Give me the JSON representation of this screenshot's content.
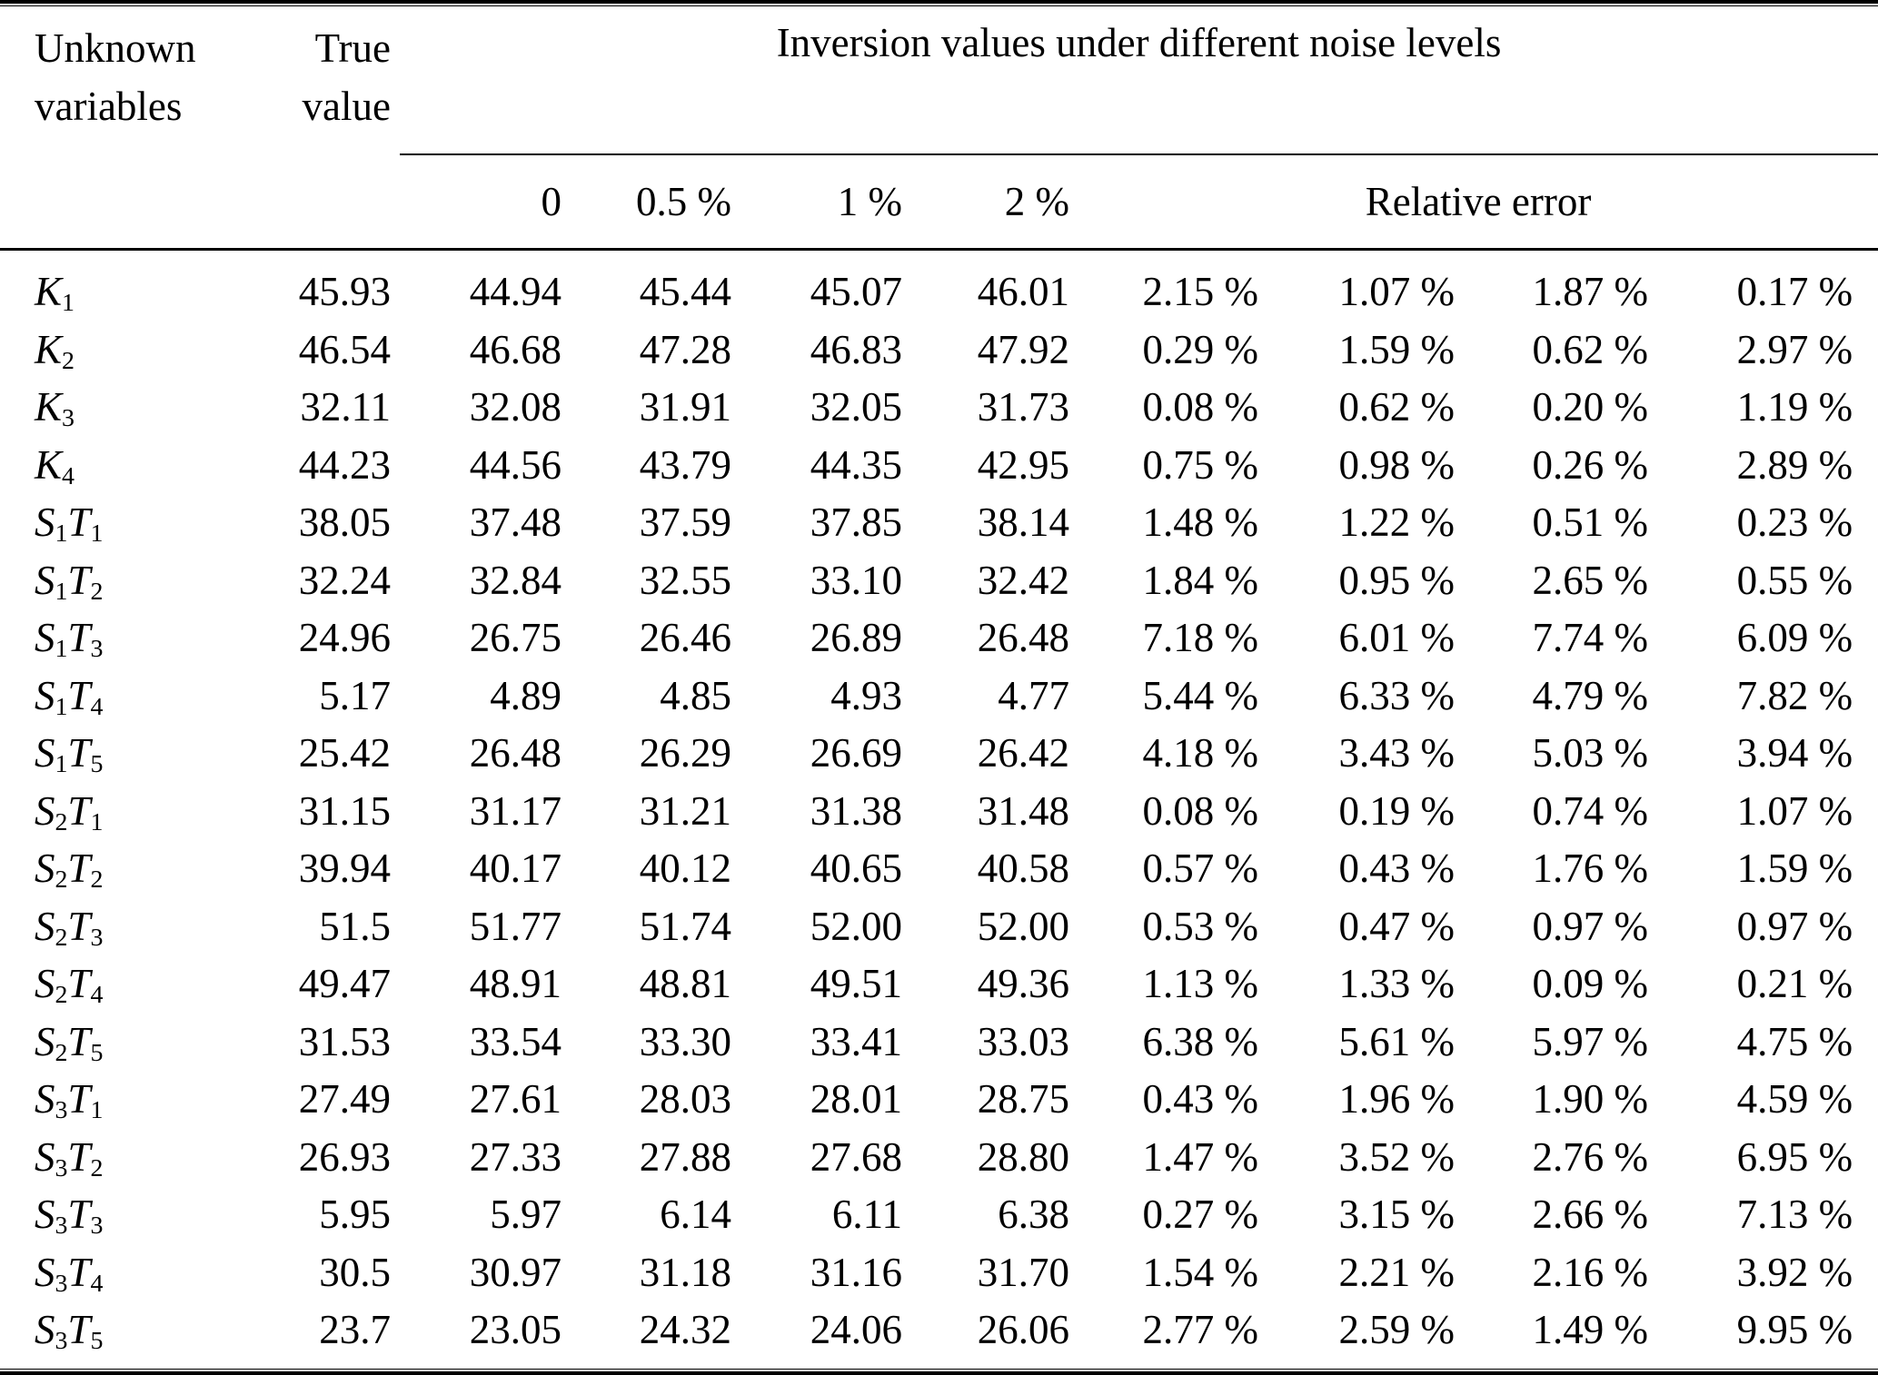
{
  "table": {
    "header": {
      "unknown_variables_lines": [
        "Unknown",
        "variables"
      ],
      "true_value_lines": [
        "True",
        "value"
      ],
      "inversion_span": "Inversion values under different noise levels",
      "noise_levels": [
        "0",
        "0.5 %",
        "1 %",
        "2 %"
      ],
      "relative_error": "Relative error"
    },
    "rows": [
      {
        "variable": "K_1",
        "true_value": "45.93",
        "inversion": [
          "44.94",
          "45.44",
          "45.07",
          "46.01"
        ],
        "relative_error": [
          "2.15 %",
          "1.07 %",
          "1.87 %",
          "0.17 %"
        ]
      },
      {
        "variable": "K_2",
        "true_value": "46.54",
        "inversion": [
          "46.68",
          "47.28",
          "46.83",
          "47.92"
        ],
        "relative_error": [
          "0.29 %",
          "1.59 %",
          "0.62 %",
          "2.97 %"
        ]
      },
      {
        "variable": "K_3",
        "true_value": "32.11",
        "inversion": [
          "32.08",
          "31.91",
          "32.05",
          "31.73"
        ],
        "relative_error": [
          "0.08 %",
          "0.62 %",
          "0.20 %",
          "1.19 %"
        ]
      },
      {
        "variable": "K_4",
        "true_value": "44.23",
        "inversion": [
          "44.56",
          "43.79",
          "44.35",
          "42.95"
        ],
        "relative_error": [
          "0.75 %",
          "0.98 %",
          "0.26 %",
          "2.89 %"
        ]
      },
      {
        "variable": "S_1T_1",
        "true_value": "38.05",
        "inversion": [
          "37.48",
          "37.59",
          "37.85",
          "38.14"
        ],
        "relative_error": [
          "1.48 %",
          "1.22 %",
          "0.51 %",
          "0.23 %"
        ]
      },
      {
        "variable": "S_1T_2",
        "true_value": "32.24",
        "inversion": [
          "32.84",
          "32.55",
          "33.10",
          "32.42"
        ],
        "relative_error": [
          "1.84 %",
          "0.95 %",
          "2.65 %",
          "0.55 %"
        ]
      },
      {
        "variable": "S_1T_3",
        "true_value": "24.96",
        "inversion": [
          "26.75",
          "26.46",
          "26.89",
          "26.48"
        ],
        "relative_error": [
          "7.18 %",
          "6.01 %",
          "7.74 %",
          "6.09 %"
        ]
      },
      {
        "variable": "S_1T_4",
        "true_value": "5.17",
        "inversion": [
          "4.89",
          "4.85",
          "4.93",
          "4.77"
        ],
        "relative_error": [
          "5.44 %",
          "6.33 %",
          "4.79 %",
          "7.82 %"
        ]
      },
      {
        "variable": "S_1T_5",
        "true_value": "25.42",
        "inversion": [
          "26.48",
          "26.29",
          "26.69",
          "26.42"
        ],
        "relative_error": [
          "4.18 %",
          "3.43 %",
          "5.03 %",
          "3.94 %"
        ]
      },
      {
        "variable": "S_2T_1",
        "true_value": "31.15",
        "inversion": [
          "31.17",
          "31.21",
          "31.38",
          "31.48"
        ],
        "relative_error": [
          "0.08 %",
          "0.19 %",
          "0.74 %",
          "1.07 %"
        ]
      },
      {
        "variable": "S_2T_2",
        "true_value": "39.94",
        "inversion": [
          "40.17",
          "40.12",
          "40.65",
          "40.58"
        ],
        "relative_error": [
          "0.57 %",
          "0.43 %",
          "1.76 %",
          "1.59 %"
        ]
      },
      {
        "variable": "S_2T_3",
        "true_value": "51.5",
        "inversion": [
          "51.77",
          "51.74",
          "52.00",
          "52.00"
        ],
        "relative_error": [
          "0.53 %",
          "0.47 %",
          "0.97 %",
          "0.97 %"
        ]
      },
      {
        "variable": "S_2T_4",
        "true_value": "49.47",
        "inversion": [
          "48.91",
          "48.81",
          "49.51",
          "49.36"
        ],
        "relative_error": [
          "1.13 %",
          "1.33 %",
          "0.09 %",
          "0.21 %"
        ]
      },
      {
        "variable": "S_2T_5",
        "true_value": "31.53",
        "inversion": [
          "33.54",
          "33.30",
          "33.41",
          "33.03"
        ],
        "relative_error": [
          "6.38 %",
          "5.61 %",
          "5.97 %",
          "4.75 %"
        ]
      },
      {
        "variable": "S_3T_1",
        "true_value": "27.49",
        "inversion": [
          "27.61",
          "28.03",
          "28.01",
          "28.75"
        ],
        "relative_error": [
          "0.43 %",
          "1.96 %",
          "1.90 %",
          "4.59 %"
        ]
      },
      {
        "variable": "S_3T_2",
        "true_value": "26.93",
        "inversion": [
          "27.33",
          "27.88",
          "27.68",
          "28.80"
        ],
        "relative_error": [
          "1.47 %",
          "3.52 %",
          "2.76 %",
          "6.95 %"
        ]
      },
      {
        "variable": "S_3T_3",
        "true_value": "5.95",
        "inversion": [
          "5.97",
          "6.14",
          "6.11",
          "6.38"
        ],
        "relative_error": [
          "0.27 %",
          "3.15 %",
          "2.66 %",
          "7.13 %"
        ]
      },
      {
        "variable": "S_3T_4",
        "true_value": "30.5",
        "inversion": [
          "30.97",
          "31.18",
          "31.16",
          "31.70"
        ],
        "relative_error": [
          "1.54 %",
          "2.21 %",
          "2.16 %",
          "3.92 %"
        ]
      },
      {
        "variable": "S_3T_5",
        "true_value": "23.7",
        "inversion": [
          "23.05",
          "24.32",
          "24.06",
          "26.06"
        ],
        "relative_error": [
          "2.77 %",
          "2.59 %",
          "1.49 %",
          "9.95 %"
        ]
      }
    ]
  }
}
